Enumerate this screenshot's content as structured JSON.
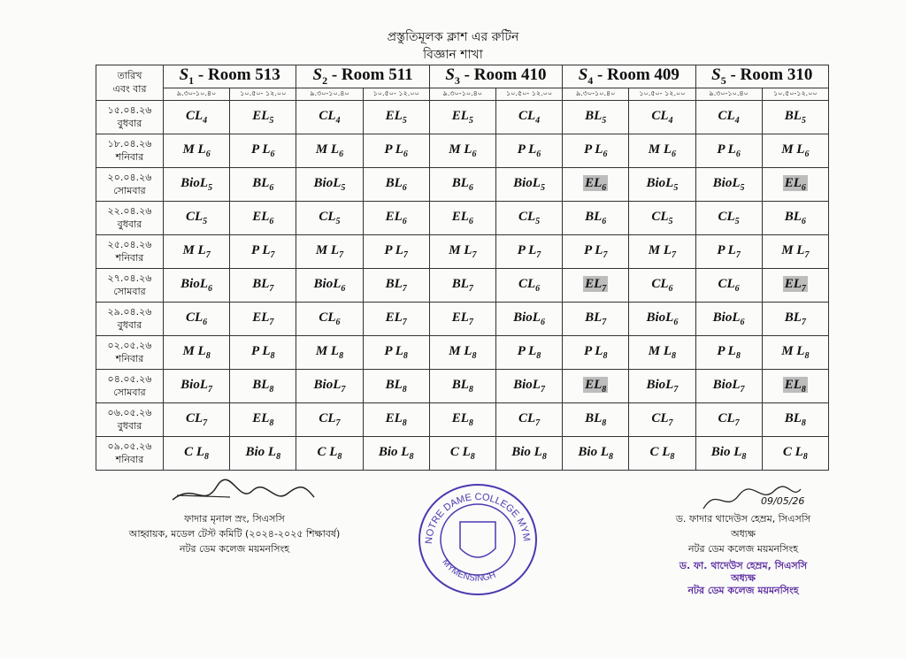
{
  "header": {
    "title": "প্রস্তুতিমূলক ক্লাশ এর রুটিন",
    "subtitle": "বিজ্ঞান শাখা"
  },
  "table": {
    "date_header": [
      "তারিখ",
      "এবং বার"
    ],
    "sections": [
      {
        "sym": "S",
        "sub": "1",
        "room": " - Room 513"
      },
      {
        "sym": "S",
        "sub": "2",
        "room": " - Room 511"
      },
      {
        "sym": "S",
        "sub": "3",
        "room": " - Room 410"
      },
      {
        "sym": "S",
        "sub": "4",
        "room": " - Room 409"
      },
      {
        "sym": "S",
        "sub": "5",
        "room": " - Room 310"
      }
    ],
    "times": [
      "৯.৩০-১০.৪০",
      "১০.৫০- ১২.০০",
      "৯.৩০-১০.৪০",
      "১০.৫০- ১২.০০",
      "৯.৩০-১০.৪০",
      "১০.৫০- ১২.০০",
      "৯.৩০-১০.৪০",
      "১০.৫০- ১২.০০",
      "৯.৩০-১০.৪০",
      "১০.৫০-১২.০০"
    ],
    "highlight_color": "#bdbdbd",
    "rows": [
      {
        "date": "১৫.০৪.২৬",
        "day": "বুধবার",
        "cells": [
          [
            "CL",
            "4"
          ],
          [
            "EL",
            "5"
          ],
          [
            "CL",
            "4"
          ],
          [
            "EL",
            "5"
          ],
          [
            "EL",
            "5"
          ],
          [
            "CL",
            "4"
          ],
          [
            "BL",
            "5"
          ],
          [
            "CL",
            "4"
          ],
          [
            "CL",
            "4"
          ],
          [
            "BL",
            "5"
          ]
        ]
      },
      {
        "date": "১৮.০৪.২৬",
        "day": "শনিবার",
        "cells": [
          [
            "M L",
            "6"
          ],
          [
            "P L",
            "6"
          ],
          [
            "M L",
            "6"
          ],
          [
            "P L",
            "6"
          ],
          [
            "M L",
            "6"
          ],
          [
            "P L",
            "6"
          ],
          [
            "P L",
            "6"
          ],
          [
            "M L",
            "6"
          ],
          [
            "P L",
            "6"
          ],
          [
            "M L",
            "6"
          ]
        ]
      },
      {
        "date": "২০.০৪.২৬",
        "day": "সোমবার",
        "cells": [
          [
            "BioL",
            "5"
          ],
          [
            "BL",
            "6"
          ],
          [
            "BioL",
            "5"
          ],
          [
            "BL",
            "6"
          ],
          [
            "BL",
            "6"
          ],
          [
            "BioL",
            "5"
          ],
          [
            "EL",
            "6",
            true
          ],
          [
            "BioL",
            "5"
          ],
          [
            "BioL",
            "5"
          ],
          [
            "EL",
            "6",
            true
          ]
        ]
      },
      {
        "date": "২২.০৪.২৬",
        "day": "বুধবার",
        "cells": [
          [
            "CL",
            "5"
          ],
          [
            "EL",
            "6"
          ],
          [
            "CL",
            "5"
          ],
          [
            "EL",
            "6"
          ],
          [
            "EL",
            "6"
          ],
          [
            "CL",
            "5"
          ],
          [
            "BL",
            "6"
          ],
          [
            "CL",
            "5"
          ],
          [
            "CL",
            "5"
          ],
          [
            "BL",
            "6"
          ]
        ]
      },
      {
        "date": "২৫.০৪.২৬",
        "day": "শনিবার",
        "cells": [
          [
            "M L",
            "7"
          ],
          [
            "P L",
            "7"
          ],
          [
            "M L",
            "7"
          ],
          [
            "P L",
            "7"
          ],
          [
            "M L",
            "7"
          ],
          [
            "P L",
            "7"
          ],
          [
            "P L",
            "7"
          ],
          [
            "M L",
            "7"
          ],
          [
            "P L",
            "7"
          ],
          [
            "M L",
            "7"
          ]
        ]
      },
      {
        "date": "২৭.০৪.২৬",
        "day": "সোমবার",
        "cells": [
          [
            "BioL",
            "6"
          ],
          [
            "BL",
            "7"
          ],
          [
            "BioL",
            "6"
          ],
          [
            "BL",
            "7"
          ],
          [
            "BL",
            "7"
          ],
          [
            "CL",
            "6"
          ],
          [
            "EL",
            "7",
            true
          ],
          [
            "CL",
            "6"
          ],
          [
            "CL",
            "6"
          ],
          [
            "EL",
            "7",
            true
          ]
        ]
      },
      {
        "date": "২৯.০৪.২৬",
        "day": "বুধবার",
        "cells": [
          [
            "CL",
            "6"
          ],
          [
            "EL",
            "7"
          ],
          [
            "CL",
            "6"
          ],
          [
            "EL",
            "7"
          ],
          [
            "EL",
            "7"
          ],
          [
            "BioL",
            "6"
          ],
          [
            "BL",
            "7"
          ],
          [
            "BioL",
            "6"
          ],
          [
            "BioL",
            "6"
          ],
          [
            "BL",
            "7"
          ]
        ]
      },
      {
        "date": "০২.০৫.২৬",
        "day": "শনিবার",
        "cells": [
          [
            "M L",
            "8"
          ],
          [
            "P L",
            "8"
          ],
          [
            "M L",
            "8"
          ],
          [
            "P L",
            "8"
          ],
          [
            "M L",
            "8"
          ],
          [
            "P L",
            "8"
          ],
          [
            "P L",
            "8"
          ],
          [
            "M L",
            "8"
          ],
          [
            "P L",
            "8"
          ],
          [
            "M L",
            "8"
          ]
        ]
      },
      {
        "date": "০৪.০৫.২৬",
        "day": "সোমবার",
        "cells": [
          [
            "BioL",
            "7"
          ],
          [
            "BL",
            "8"
          ],
          [
            "BioL",
            "7"
          ],
          [
            "BL",
            "8"
          ],
          [
            "BL",
            "8"
          ],
          [
            "BioL",
            "7"
          ],
          [
            "EL",
            "8",
            true
          ],
          [
            "BioL",
            "7"
          ],
          [
            "BioL",
            "7"
          ],
          [
            "EL",
            "8",
            true
          ]
        ]
      },
      {
        "date": "০৬.০৫.২৬",
        "day": "বুধবার",
        "cells": [
          [
            "CL",
            "7"
          ],
          [
            "EL",
            "8"
          ],
          [
            "CL",
            "7"
          ],
          [
            "EL",
            "8"
          ],
          [
            "EL",
            "8"
          ],
          [
            "CL",
            "7"
          ],
          [
            "BL",
            "8"
          ],
          [
            "CL",
            "7"
          ],
          [
            "CL",
            "7"
          ],
          [
            "BL",
            "8"
          ]
        ]
      },
      {
        "date": "০৯.০৫.২৬",
        "day": "শনিবার",
        "cells": [
          [
            "C L",
            "8"
          ],
          [
            "Bio L",
            "8"
          ],
          [
            "C L",
            "8"
          ],
          [
            "Bio L",
            "8"
          ],
          [
            "C L",
            "8"
          ],
          [
            "Bio L",
            "8"
          ],
          [
            "Bio L",
            "8"
          ],
          [
            "C L",
            "8"
          ],
          [
            "Bio L",
            "8"
          ],
          [
            "C L",
            "8"
          ]
        ]
      }
    ]
  },
  "left_signature": {
    "name": "ফাদার মৃনাল স্রং, সিএসসি",
    "role": "আহ্বায়ক, মডেল টেস্ট কমিটি (২০২৪-২০২৫ শিক্ষাবর্ষ)",
    "org": "নটর ডেম কলেজ ময়মনসিংহ"
  },
  "seal": {
    "top": "NOTRE DAME COLLEGE MYMENSINGH",
    "bottom": "MYMENSINGH",
    "color": "#4a3bb0"
  },
  "right_signature": {
    "date_note": "09/05/26",
    "name": "ড. ফাদার থাদেউস হেম্রম, সিএসসি",
    "role": "অধ্যক্ষ",
    "org": "নটর ডেম কলেজ ময়মনসিংহ",
    "stamp_name": "ড. ফা. থাদেউস হেম্রম, সিএসসি",
    "stamp_role": "অধ্যক্ষ",
    "stamp_org": "নটর ডেম কলেজ ময়মনসিংহ",
    "stamp_color": "#5b2ca0"
  }
}
